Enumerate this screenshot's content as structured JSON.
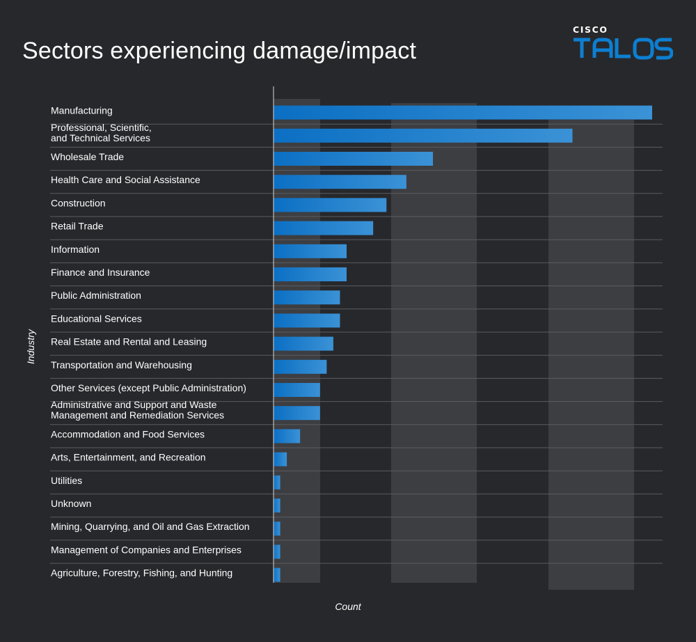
{
  "chart_data": {
    "type": "bar",
    "orientation": "horizontal",
    "title": "Sectors experiencing damage/impact",
    "xlabel": "Count",
    "ylabel": "Industry",
    "xlim": [
      0,
      57
    ],
    "grid": "alternating vertical bands",
    "categories": [
      "Manufacturing",
      "Professional, Scientific,\nand Technical Services",
      "Wholesale Trade",
      "Health Care and Social Assistance",
      "Construction",
      "Retail Trade",
      "Information",
      "Finance and Insurance",
      "Public Administration",
      "Educational Services",
      "Real Estate and Rental and Leasing",
      "Transportation and Warehousing",
      "Other Services (except Public Administration)",
      "Administrative and Support and Waste\nManagement and Remediation Services",
      "Accommodation and Food Services",
      "Arts, Entertainment, and Recreation",
      "Utilities",
      "Unknown",
      "Mining, Quarrying, and Oil and Gas Extraction",
      "Management of Companies and Enterprises",
      "Agriculture, Forestry, Fishing, and Hunting"
    ],
    "values": [
      57,
      45,
      24,
      20,
      17,
      15,
      11,
      11,
      10,
      10,
      9,
      8,
      7,
      7,
      4,
      2,
      1,
      1,
      1,
      1,
      1
    ],
    "bar_color_start": "#0b6fc3",
    "bar_color_end": "#3b92d6"
  },
  "branding": {
    "small": "CISCO",
    "large": "TALOS",
    "accent": "#0d7fd1"
  },
  "colors": {
    "background": "#27282c",
    "band": "#3d3e42",
    "divider": "#5b5c60",
    "text": "#ffffff"
  }
}
